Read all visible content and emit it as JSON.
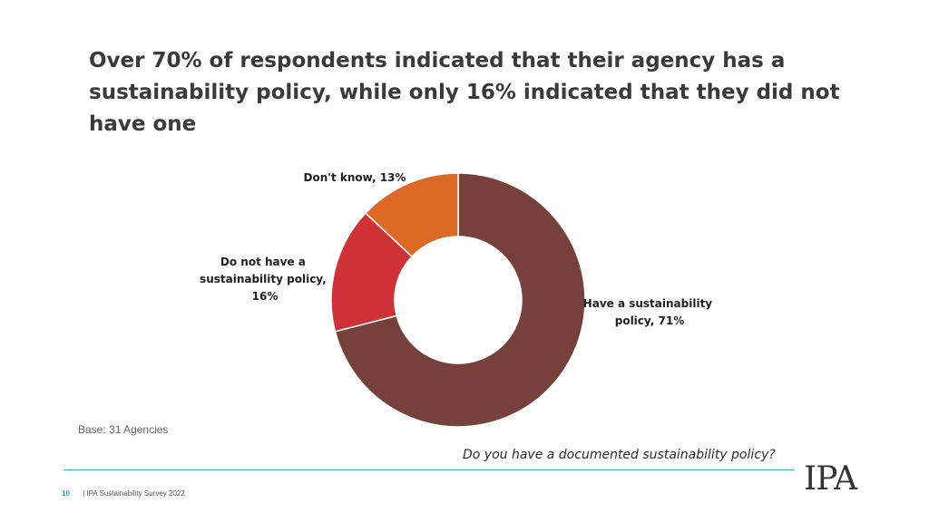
{
  "title": "Over 70% of respondents indicated that their agency has a sustainability policy, while only 16% indicated that they did not have one",
  "chart_data": {
    "type": "pie",
    "style": "donut",
    "slices": [
      {
        "label": "Have a sustainability policy, 71%",
        "value": 71,
        "color": "#77413B"
      },
      {
        "label": "Do not have a sustainability policy, 16%",
        "value": 16,
        "color": "#CE3138"
      },
      {
        "label": "Don't know, 13%",
        "value": 13,
        "color": "#DC6A26"
      }
    ]
  },
  "base_note": "Base: 31 Agencies",
  "question": "Do you have a documented sustainability policy?",
  "footer": {
    "page_number": "10",
    "text": "| IPA Sustainability Survey 2022"
  },
  "logo": {
    "text": "IPA"
  }
}
